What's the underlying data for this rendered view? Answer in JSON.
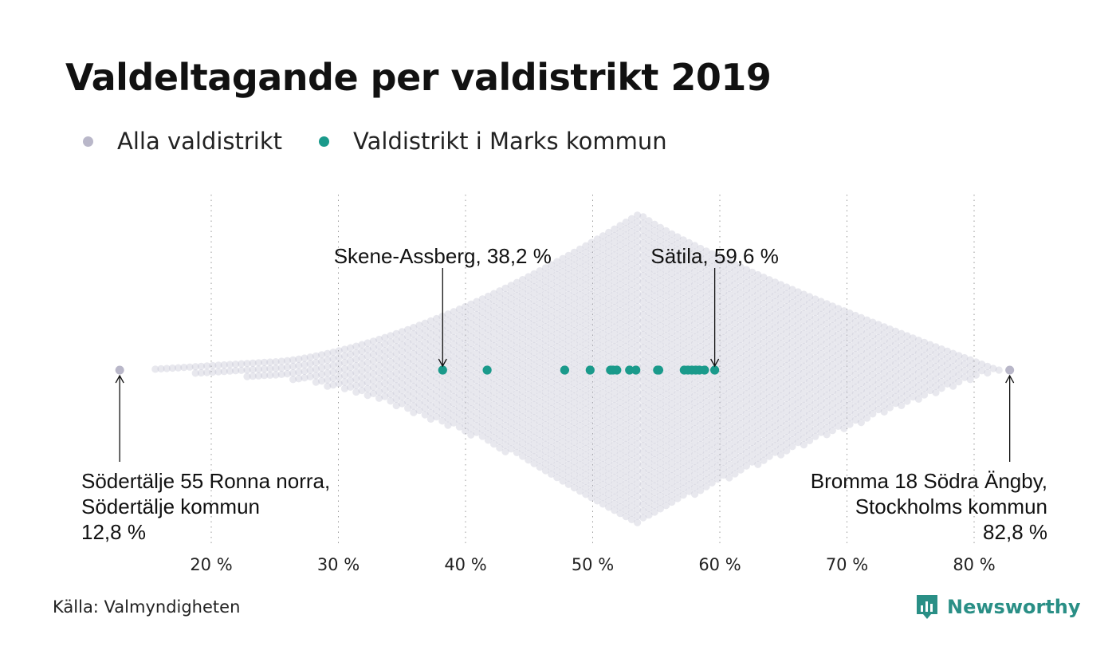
{
  "title": "Valdeltagande per valdistrikt 2019",
  "legend": {
    "all_label": "Alla valdistrikt",
    "all_color": "#b9b7c9",
    "highlight_label": "Valdistrikt i Marks kommun",
    "highlight_color": "#1a9a8b"
  },
  "chart_data": {
    "type": "scatter",
    "subtype": "beeswarm",
    "x_unit": "%",
    "xlim": [
      10,
      85
    ],
    "x_ticks": [
      20,
      30,
      40,
      50,
      60,
      70,
      80
    ],
    "x_tick_labels": [
      "20 %",
      "30 %",
      "40 %",
      "50 %",
      "60 %",
      "70 %",
      "80 %"
    ],
    "grid": "vertical dotted",
    "distribution": {
      "name": "Alla valdistrikt",
      "min": 12.8,
      "max": 82.8,
      "peak": 53.7,
      "color": "#b9b7c9"
    },
    "series": [
      {
        "name": "Valdistrikt i Marks kommun",
        "color": "#1a9a8b",
        "values": [
          38.2,
          41.7,
          47.8,
          49.8,
          51.4,
          51.6,
          51.9,
          52.9,
          53.4,
          55.1,
          55.2,
          57.2,
          57.5,
          57.8,
          58.1,
          58.4,
          58.8,
          59.6
        ]
      }
    ],
    "annotations": [
      {
        "label": "Skene-Assberg, 38,2 %",
        "x": 38.2,
        "placement": "above",
        "anchor": "middle"
      },
      {
        "label": "Sätila, 59,6 %",
        "x": 59.6,
        "placement": "above",
        "anchor": "middle"
      },
      {
        "lines": [
          "Södertälje 55 Ronna norra,",
          "Södertälje kommun",
          "12,8 %"
        ],
        "x": 12.8,
        "placement": "below",
        "anchor": "start"
      },
      {
        "lines": [
          "Bromma 18 Södra Ängby,",
          "Stockholms kommun",
          "82,8 %"
        ],
        "x": 82.8,
        "placement": "below",
        "anchor": "end"
      }
    ]
  },
  "source": "Källa: Valmyndigheten",
  "brand": {
    "name": "Newsworthy",
    "color": "#2a8f86",
    "icon": "bar-chart-logo-icon"
  }
}
